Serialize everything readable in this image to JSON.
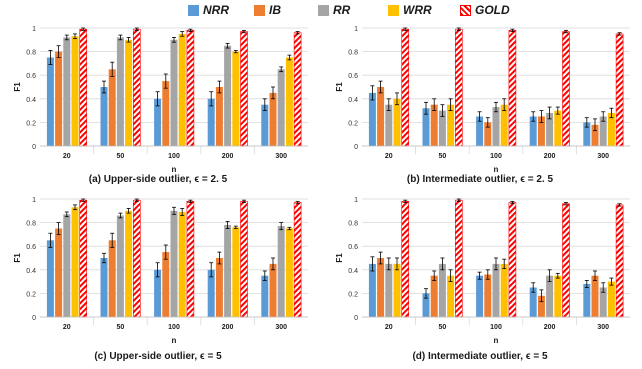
{
  "legend": [
    {
      "name": "NRR",
      "color": "#5b9bd5"
    },
    {
      "name": "IB",
      "color": "#ed7d31"
    },
    {
      "name": "RR",
      "color": "#a5a5a5"
    },
    {
      "name": "WRR",
      "color": "#ffc000"
    },
    {
      "name": "GOLD",
      "color": "#ff0000",
      "pattern": "hatched"
    }
  ],
  "chart_data": [
    {
      "type": "bar",
      "caption": "(a) Upper-side outlier,  ϵ = 2. 5",
      "xlabel": "n",
      "ylabel": "F1",
      "ylim": [
        0,
        1
      ],
      "yticks": [
        "0",
        "0.2",
        "0.4",
        "0.6",
        "0.8",
        "1"
      ],
      "categories": [
        "20",
        "50",
        "100",
        "200",
        "300"
      ],
      "series": [
        {
          "name": "NRR",
          "values": [
            0.75,
            0.5,
            0.4,
            0.4,
            0.35
          ],
          "errors": [
            0.06,
            0.05,
            0.06,
            0.06,
            0.05
          ]
        },
        {
          "name": "IB",
          "values": [
            0.8,
            0.65,
            0.55,
            0.5,
            0.45
          ],
          "errors": [
            0.05,
            0.06,
            0.06,
            0.05,
            0.05
          ]
        },
        {
          "name": "RR",
          "values": [
            0.92,
            0.92,
            0.9,
            0.85,
            0.65
          ],
          "errors": [
            0.02,
            0.02,
            0.02,
            0.02,
            0.02
          ]
        },
        {
          "name": "WRR",
          "values": [
            0.93,
            0.9,
            0.95,
            0.8,
            0.75
          ],
          "errors": [
            0.02,
            0.02,
            0.02,
            0.01,
            0.02
          ]
        },
        {
          "name": "GOLD",
          "values": [
            0.99,
            0.99,
            0.98,
            0.97,
            0.96
          ],
          "errors": [
            0.01,
            0.01,
            0.01,
            0.01,
            0.01
          ]
        }
      ]
    },
    {
      "type": "bar",
      "caption": "(b) Intermediate outlier,  ϵ = 2. 5",
      "xlabel": "n",
      "ylabel": "F1",
      "ylim": [
        0,
        1
      ],
      "yticks": [
        "0",
        "0.2",
        "0.4",
        "0.6",
        "0.8",
        "1"
      ],
      "categories": [
        "20",
        "50",
        "100",
        "200",
        "300"
      ],
      "series": [
        {
          "name": "NRR",
          "values": [
            0.45,
            0.32,
            0.25,
            0.25,
            0.2
          ],
          "errors": [
            0.06,
            0.05,
            0.04,
            0.04,
            0.04
          ]
        },
        {
          "name": "IB",
          "values": [
            0.5,
            0.35,
            0.2,
            0.25,
            0.18
          ],
          "errors": [
            0.05,
            0.05,
            0.04,
            0.05,
            0.05
          ]
        },
        {
          "name": "RR",
          "values": [
            0.35,
            0.3,
            0.33,
            0.28,
            0.25
          ],
          "errors": [
            0.05,
            0.05,
            0.04,
            0.05,
            0.04
          ]
        },
        {
          "name": "WRR",
          "values": [
            0.4,
            0.35,
            0.35,
            0.3,
            0.28
          ],
          "errors": [
            0.05,
            0.05,
            0.05,
            0.03,
            0.04
          ]
        },
        {
          "name": "GOLD",
          "values": [
            0.99,
            0.99,
            0.98,
            0.97,
            0.95
          ],
          "errors": [
            0.01,
            0.01,
            0.01,
            0.01,
            0.01
          ]
        }
      ]
    },
    {
      "type": "bar",
      "caption": "(c) Upper-side outlier,  ϵ = 5",
      "xlabel": "n",
      "ylabel": "F1",
      "ylim": [
        0,
        1
      ],
      "yticks": [
        "0",
        "0.2",
        "0.4",
        "0.6",
        "0.8",
        "1"
      ],
      "categories": [
        "20",
        "50",
        "100",
        "200",
        "300"
      ],
      "series": [
        {
          "name": "NRR",
          "values": [
            0.65,
            0.5,
            0.4,
            0.4,
            0.35
          ],
          "errors": [
            0.06,
            0.04,
            0.06,
            0.06,
            0.04
          ]
        },
        {
          "name": "IB",
          "values": [
            0.75,
            0.65,
            0.55,
            0.5,
            0.45
          ],
          "errors": [
            0.05,
            0.06,
            0.06,
            0.05,
            0.05
          ]
        },
        {
          "name": "RR",
          "values": [
            0.87,
            0.86,
            0.9,
            0.78,
            0.77
          ],
          "errors": [
            0.02,
            0.02,
            0.03,
            0.03,
            0.03
          ]
        },
        {
          "name": "WRR",
          "values": [
            0.93,
            0.9,
            0.89,
            0.76,
            0.75
          ],
          "errors": [
            0.02,
            0.02,
            0.03,
            0.01,
            0.01
          ]
        },
        {
          "name": "GOLD",
          "values": [
            0.99,
            0.99,
            0.98,
            0.98,
            0.97
          ],
          "errors": [
            0.01,
            0.01,
            0.01,
            0.01,
            0.01
          ]
        }
      ]
    },
    {
      "type": "bar",
      "caption": "(d) Intermediate outlier,  ϵ = 5",
      "xlabel": "n",
      "ylabel": "F1",
      "ylim": [
        0,
        1
      ],
      "yticks": [
        "0",
        "0.2",
        "0.4",
        "0.6",
        "0.8",
        "1"
      ],
      "categories": [
        "20",
        "50",
        "100",
        "200",
        "300"
      ],
      "series": [
        {
          "name": "NRR",
          "values": [
            0.45,
            0.2,
            0.35,
            0.25,
            0.28
          ],
          "errors": [
            0.06,
            0.04,
            0.03,
            0.04,
            0.03
          ]
        },
        {
          "name": "IB",
          "values": [
            0.5,
            0.35,
            0.36,
            0.18,
            0.35
          ],
          "errors": [
            0.05,
            0.04,
            0.04,
            0.05,
            0.04
          ]
        },
        {
          "name": "RR",
          "values": [
            0.45,
            0.45,
            0.45,
            0.35,
            0.25
          ],
          "errors": [
            0.05,
            0.05,
            0.05,
            0.05,
            0.04
          ]
        },
        {
          "name": "WRR",
          "values": [
            0.45,
            0.35,
            0.45,
            0.35,
            0.3
          ],
          "errors": [
            0.05,
            0.05,
            0.04,
            0.02,
            0.03
          ]
        },
        {
          "name": "GOLD",
          "values": [
            0.98,
            0.99,
            0.97,
            0.96,
            0.95
          ],
          "errors": [
            0.01,
            0.01,
            0.01,
            0.01,
            0.01
          ]
        }
      ]
    }
  ]
}
